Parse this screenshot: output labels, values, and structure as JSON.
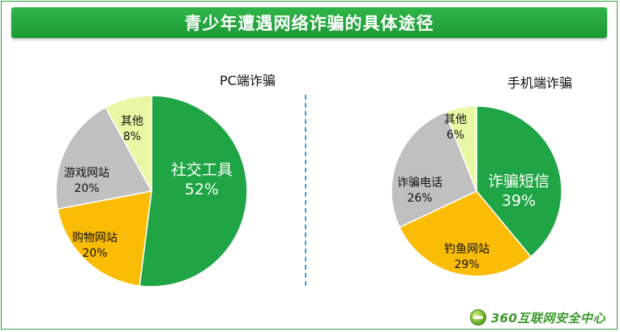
{
  "title": "青少年遭遇网络诈骗的具体途径",
  "footer": "360互联网安全中心",
  "chart_data": [
    {
      "type": "pie",
      "title": "PC端诈骗",
      "slices": [
        {
          "label": "社交工具",
          "value": 52,
          "display": "52%",
          "color": "#1fa545"
        },
        {
          "label": "购物网站",
          "value": 20,
          "display": "20%",
          "color": "#fbbc05"
        },
        {
          "label": "游戏网站",
          "value": 20,
          "display": "20%",
          "color": "#c0c0c0"
        },
        {
          "label": "其他",
          "value": 8,
          "display": "8%",
          "color": "#e8f7a3"
        }
      ]
    },
    {
      "type": "pie",
      "title": "手机端诈骗",
      "slices": [
        {
          "label": "诈骗短信",
          "value": 39,
          "display": "39%",
          "color": "#1fa545"
        },
        {
          "label": "钓鱼网站",
          "value": 29,
          "display": "29%",
          "color": "#fbbc05"
        },
        {
          "label": "诈骗电话",
          "value": 26,
          "display": "26%",
          "color": "#c0c0c0"
        },
        {
          "label": "其他",
          "value": 6,
          "display": "6%",
          "color": "#e8f7a3"
        }
      ]
    }
  ]
}
